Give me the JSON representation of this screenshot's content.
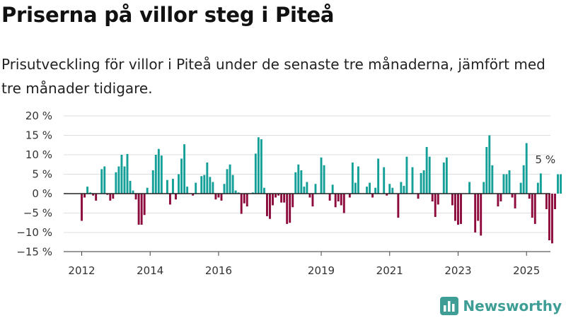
{
  "chart_data": {
    "type": "bar",
    "title": "Priserna på villor steg i Piteå",
    "subtitle": "Prisutveckling för villor i Piteå under de senaste tre månaderna, jämfört med tre månader tidigare.",
    "ylim": [
      -15,
      20
    ],
    "yticks": [
      -15,
      -10,
      -5,
      0,
      5,
      10,
      15,
      20
    ],
    "ytick_labels": [
      "−15 %",
      "−10 %",
      "−5 %",
      "0 %",
      "5 %",
      "10 %",
      "15 %",
      "20 %"
    ],
    "x_start": "2011-11",
    "xticks": [
      {
        "label": "2012",
        "month": "2012-01"
      },
      {
        "label": "2014",
        "month": "2014-01"
      },
      {
        "label": "2016",
        "month": "2016-01"
      },
      {
        "label": "2019",
        "month": "2019-01"
      },
      {
        "label": "2021",
        "month": "2021-01"
      },
      {
        "label": "2023",
        "month": "2023-01"
      },
      {
        "label": "2025",
        "month": "2025-01"
      }
    ],
    "annotation": {
      "text": "5 %",
      "month": "2025-04"
    },
    "positive_color": "#14a098",
    "negative_color": "#8c0a3c",
    "values": [
      0,
      0,
      -7,
      -1,
      1.8,
      0.3,
      -0.5,
      -1.8,
      0,
      6.3,
      7,
      -0.3,
      -1.8,
      -1.3,
      5.5,
      7,
      10,
      7,
      10.2,
      3.3,
      0.8,
      -1.5,
      -8,
      -8,
      -5.5,
      1.5,
      0,
      6,
      10,
      11.5,
      9.8,
      0,
      3.5,
      -2.8,
      3.8,
      -1.5,
      5,
      9,
      12.7,
      1.8,
      0,
      -0.5,
      2.8,
      0,
      4.5,
      4.8,
      8,
      4.3,
      3,
      -1.5,
      -1,
      -1.8,
      2.5,
      6.3,
      7.5,
      4.8,
      0.8,
      0.3,
      -5.2,
      -2.5,
      -3.3,
      0,
      0.3,
      10.3,
      14.5,
      14,
      1.5,
      -5.8,
      -6.5,
      -3,
      -1,
      -0.5,
      -2.3,
      -2.3,
      -7.8,
      -7.5,
      -3.5,
      5.5,
      7.5,
      6,
      1.8,
      3,
      -1,
      -3.3,
      2.5,
      0,
      9.3,
      7.3,
      0,
      -1.8,
      2.3,
      -3.5,
      -2,
      -3,
      -5,
      0,
      -1,
      8,
      2.8,
      7,
      0,
      0,
      1.8,
      2.8,
      -1,
      1.5,
      9,
      0,
      6.8,
      -0.5,
      2.5,
      1.5,
      0,
      -6.2,
      3,
      2,
      9.5,
      0,
      6.8,
      0,
      -1.3,
      5.3,
      6,
      12,
      9.5,
      -2,
      -6,
      -2.8,
      0,
      8,
      9.3,
      0,
      -3,
      -7,
      -8,
      -7.8,
      0,
      0,
      3,
      0,
      -10,
      -7,
      -10.8,
      3,
      12,
      15,
      7.3,
      0,
      -3.3,
      -2,
      5,
      5,
      6,
      -1,
      -3.8,
      0,
      2.8,
      7.3,
      13,
      -1.3,
      -6.2,
      -7.8,
      2.8,
      5.2,
      0,
      -4,
      -12,
      -12.8,
      -4,
      5,
      5
    ]
  },
  "brand": {
    "name": "Newsworthy",
    "icon": "newsworthy-bar-logo-icon",
    "color": "#3e9e96"
  }
}
